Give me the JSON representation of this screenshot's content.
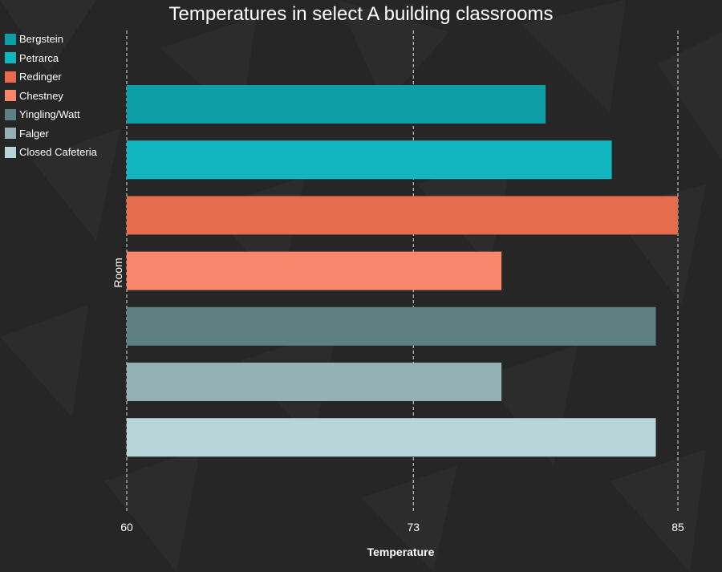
{
  "chart_data": {
    "type": "bar",
    "orientation": "horizontal",
    "title": "Temperatures in select A building classrooms",
    "xlabel": "Temperature",
    "ylabel": "Room",
    "xlim": [
      60,
      85
    ],
    "xticks": [
      60,
      73,
      85
    ],
    "grid": "vertical dashed",
    "legend_position": "top-left",
    "categories": [
      "Bergstein",
      "Petrarca",
      "Redinger",
      "Chestney",
      "Yingling/Watt",
      "Falger",
      "Closed Cafeteria"
    ],
    "values": [
      79,
      82,
      85,
      77,
      84,
      77,
      84
    ],
    "colors": [
      "#0e9ea5",
      "#12b6be",
      "#e56c4c",
      "#f7866a",
      "#5f8083",
      "#94b2b6",
      "#b7d5d9"
    ]
  }
}
